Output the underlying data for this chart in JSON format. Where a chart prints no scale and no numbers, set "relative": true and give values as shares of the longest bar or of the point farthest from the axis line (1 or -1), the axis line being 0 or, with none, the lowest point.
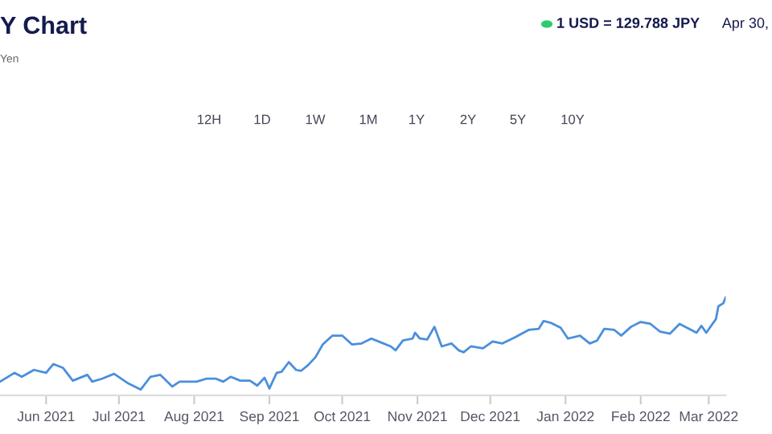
{
  "chart_data": {
    "type": "line",
    "title": "Y Chart",
    "subtitle": "Yen",
    "relative": true,
    "color": "#4a8fdc",
    "marker": "none",
    "line_style": "solid",
    "annotations": [
      "1 USD = 129.788 JPY",
      "Apr 30,",
      "12H",
      "1D",
      "1W",
      "1M",
      "1Y",
      "2Y",
      "5Y",
      "10Y"
    ],
    "xlim": [
      "2021-05-13",
      "2022-03-08"
    ],
    "xticks": [
      {
        "value": "2021-06-01",
        "label": "Jun 2021"
      },
      {
        "value": "2021-07-01",
        "label": "Jul 2021"
      },
      {
        "value": "2021-08-01",
        "label": "Aug 2021"
      },
      {
        "value": "2021-09-01",
        "label": "Sep 2021"
      },
      {
        "value": "2021-10-01",
        "label": "Oct 2021"
      },
      {
        "value": "2021-11-01",
        "label": "Nov 2021"
      },
      {
        "value": "2021-12-01",
        "label": "Dec 2021"
      },
      {
        "value": "2022-01-01",
        "label": "Jan 2022"
      },
      {
        "value": "2022-02-01",
        "label": "Feb 2022"
      },
      {
        "value": "2022-03-01",
        "label": "Mar 2022"
      }
    ],
    "x": [
      "2021-05-13",
      "2021-05-19",
      "2021-05-22",
      "2021-05-27",
      "2021-06-01",
      "2021-06-04",
      "2021-06-08",
      "2021-06-12",
      "2021-06-18",
      "2021-06-20",
      "2021-06-24",
      "2021-06-29",
      "2021-07-05",
      "2021-07-10",
      "2021-07-14",
      "2021-07-18",
      "2021-07-23",
      "2021-07-26",
      "2021-08-02",
      "2021-08-06",
      "2021-08-10",
      "2021-08-13",
      "2021-08-16",
      "2021-08-20",
      "2021-08-24",
      "2021-08-27",
      "2021-08-30",
      "2021-09-01",
      "2021-09-04",
      "2021-09-06",
      "2021-09-09",
      "2021-09-12",
      "2021-09-14",
      "2021-09-17",
      "2021-09-20",
      "2021-09-23",
      "2021-09-27",
      "2021-10-01",
      "2021-10-05",
      "2021-10-09",
      "2021-10-13",
      "2021-10-17",
      "2021-10-21",
      "2021-10-23",
      "2021-10-26",
      "2021-10-30",
      "2021-10-31",
      "2021-11-02",
      "2021-11-05",
      "2021-11-08",
      "2021-11-11",
      "2021-11-15",
      "2021-11-18",
      "2021-11-20",
      "2021-11-23",
      "2021-11-28",
      "2021-12-02",
      "2021-12-06",
      "2021-12-11",
      "2021-12-17",
      "2021-12-21",
      "2021-12-23",
      "2021-12-26",
      "2021-12-30",
      "2022-01-02",
      "2022-01-07",
      "2022-01-11",
      "2022-01-14",
      "2022-01-17",
      "2022-01-21",
      "2022-01-24",
      "2022-01-28",
      "2022-02-01",
      "2022-02-05",
      "2022-02-09",
      "2022-02-13",
      "2022-02-17",
      "2022-02-24",
      "2022-02-26",
      "2022-02-28",
      "2022-03-04",
      "2022-03-05",
      "2022-03-07",
      "2022-03-08"
    ],
    "values": [
      0.14,
      0.23,
      0.19,
      0.26,
      0.23,
      0.32,
      0.28,
      0.15,
      0.21,
      0.14,
      0.17,
      0.22,
      0.12,
      0.06,
      0.19,
      0.21,
      0.09,
      0.14,
      0.14,
      0.17,
      0.17,
      0.14,
      0.19,
      0.15,
      0.15,
      0.1,
      0.18,
      0.07,
      0.23,
      0.24,
      0.34,
      0.26,
      0.25,
      0.31,
      0.39,
      0.52,
      0.61,
      0.61,
      0.52,
      0.53,
      0.58,
      0.54,
      0.5,
      0.46,
      0.56,
      0.58,
      0.64,
      0.58,
      0.57,
      0.7,
      0.5,
      0.53,
      0.46,
      0.44,
      0.5,
      0.48,
      0.55,
      0.53,
      0.59,
      0.67,
      0.68,
      0.76,
      0.74,
      0.69,
      0.58,
      0.61,
      0.53,
      0.56,
      0.68,
      0.67,
      0.61,
      0.7,
      0.75,
      0.73,
      0.65,
      0.63,
      0.73,
      0.64,
      0.71,
      0.64,
      0.78,
      0.91,
      0.94,
      1
    ]
  }
}
